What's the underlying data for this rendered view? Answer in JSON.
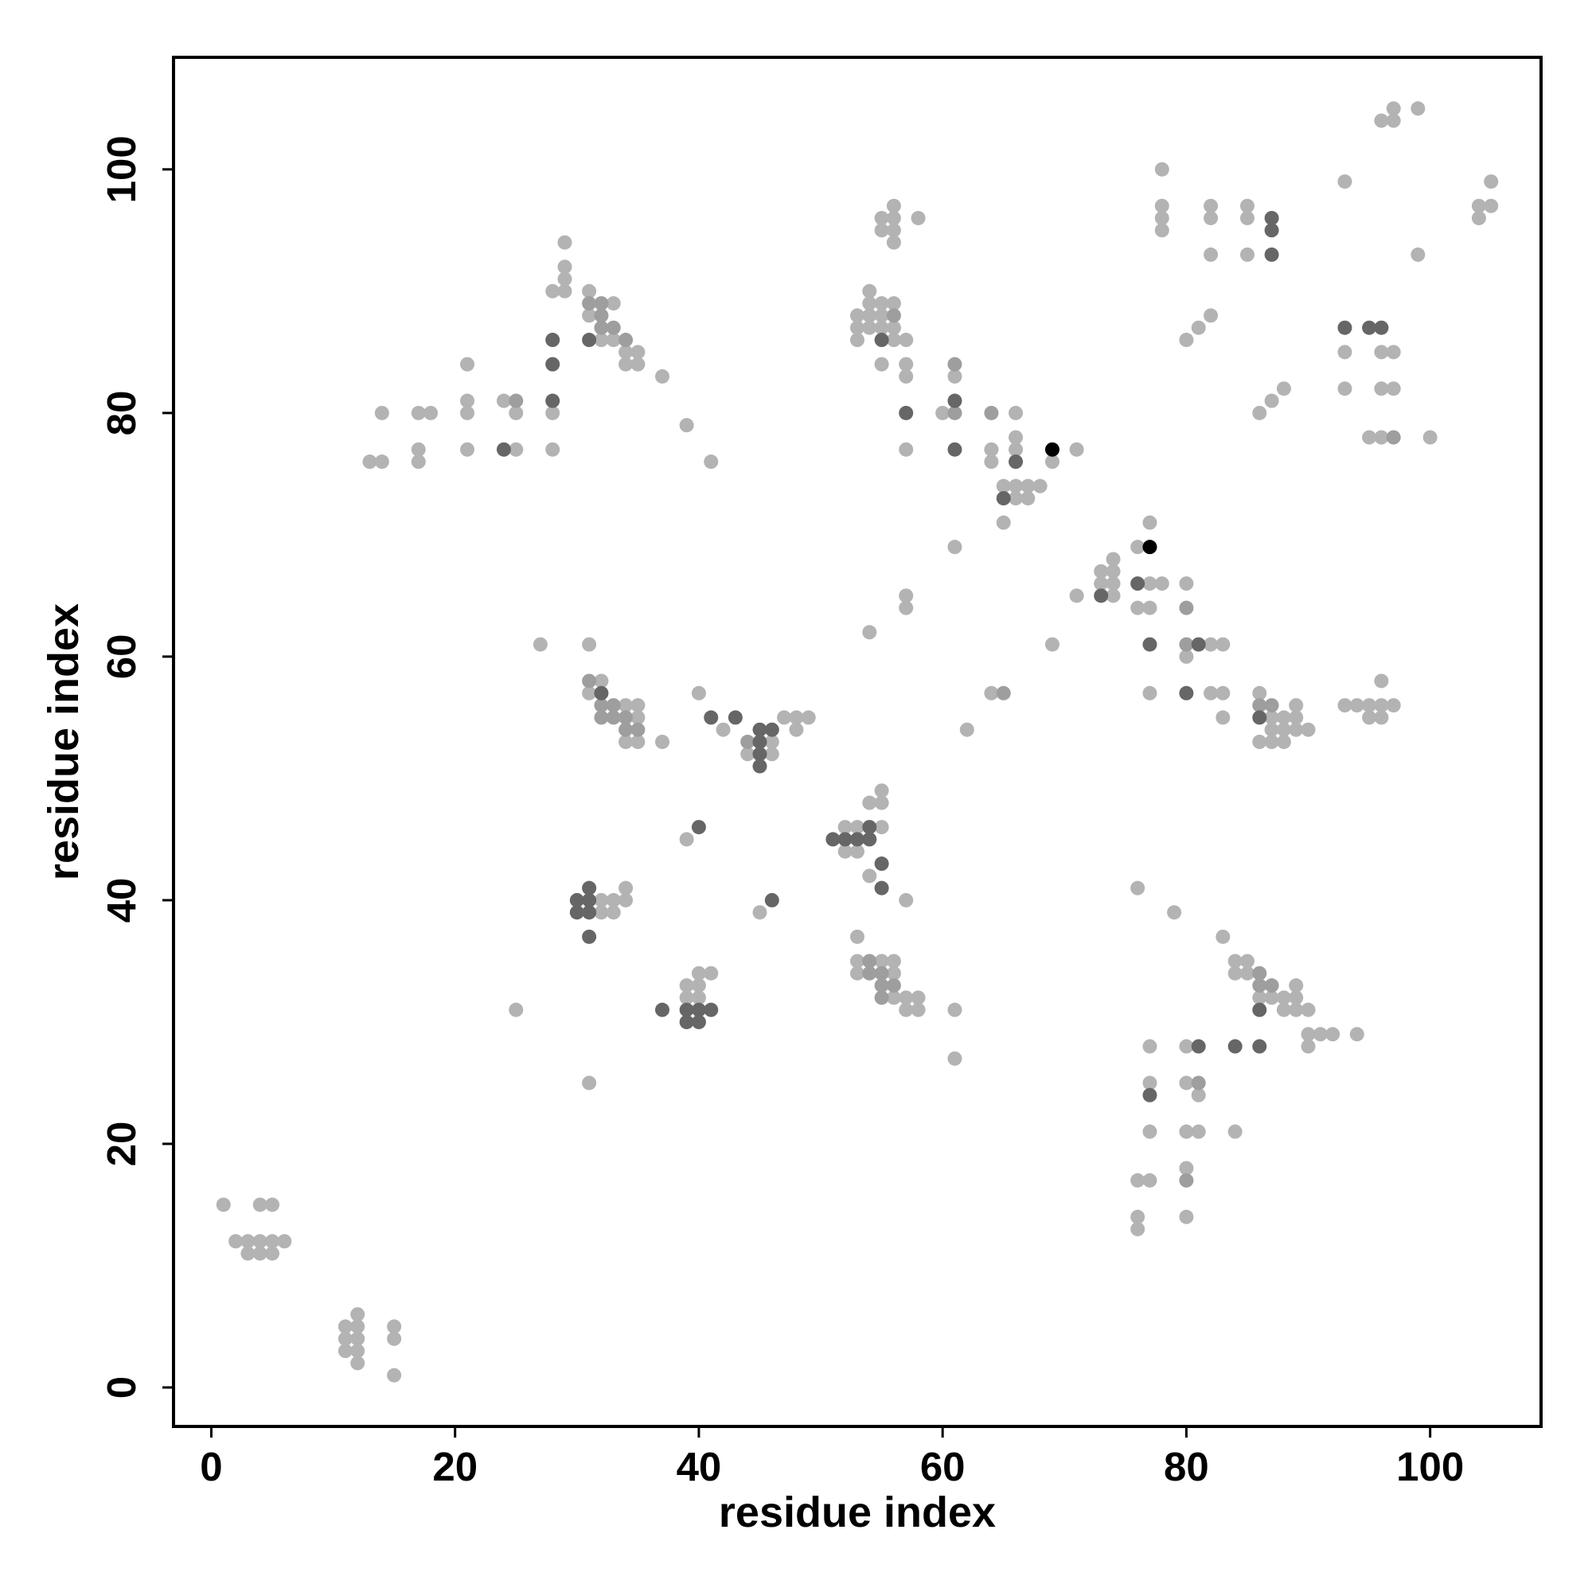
{
  "chart_data": {
    "type": "scatter",
    "xlabel": "residue index",
    "ylabel": "residue index",
    "xlim": [
      -3.1,
      109.1
    ],
    "ylim": [
      -3.2,
      109.2
    ],
    "xticks": [
      0,
      20,
      40,
      60,
      80,
      100
    ],
    "yticks": [
      0,
      20,
      40,
      60,
      80,
      100
    ],
    "series": [
      {
        "color": "#b3b3b3",
        "x": [
          1,
          2,
          3,
          4,
          5,
          6,
          3,
          4,
          5,
          4,
          5,
          11,
          11,
          11,
          12,
          12,
          12,
          12,
          12,
          15,
          15,
          15,
          13,
          14,
          14,
          17,
          18,
          17,
          17,
          21,
          21,
          21,
          21,
          24,
          25,
          25,
          28,
          29,
          29,
          29,
          29,
          28,
          28,
          31,
          31,
          33,
          32,
          33,
          34,
          35,
          34,
          35,
          37,
          39,
          41,
          27,
          31,
          32,
          31,
          34,
          35,
          35,
          34,
          35,
          37,
          40,
          42,
          47,
          48,
          49,
          48,
          44,
          46,
          46,
          39,
          45,
          31,
          25,
          32,
          33,
          34,
          34,
          32,
          33,
          39,
          40,
          39,
          40,
          40,
          41,
          53,
          52,
          52,
          53,
          55,
          54,
          55,
          55,
          54,
          57,
          53,
          53,
          55,
          56,
          53,
          56,
          56,
          57,
          58,
          57,
          58,
          61,
          61,
          54,
          55,
          56,
          55,
          56,
          56,
          56,
          58,
          53,
          54,
          55,
          53,
          54,
          55,
          56,
          54,
          55,
          56,
          54,
          53,
          56,
          57,
          55,
          57,
          57,
          57,
          57,
          57,
          60,
          61,
          61,
          66,
          66,
          64,
          66,
          64,
          65,
          66,
          67,
          68,
          66,
          67,
          65,
          69,
          71,
          64,
          62,
          69,
          71,
          73,
          74,
          74,
          73,
          74,
          74,
          76,
          77,
          77,
          78,
          76,
          77,
          80,
          80,
          82,
          83,
          77,
          82,
          83,
          83,
          86,
          87,
          88,
          89,
          89,
          87,
          88,
          89,
          90,
          86,
          87,
          88,
          93,
          94,
          95,
          96,
          97,
          96,
          95,
          96,
          76,
          79,
          83,
          84,
          85,
          84,
          85,
          86,
          87,
          88,
          89,
          89,
          88,
          89,
          90,
          90,
          91,
          92,
          94,
          90,
          77,
          80,
          77,
          80,
          81,
          77,
          80,
          81,
          84,
          80,
          76,
          77,
          76,
          76,
          80,
          78,
          78,
          78,
          78,
          82,
          82,
          82,
          85,
          85,
          85,
          80,
          81,
          82,
          86,
          87,
          88,
          93,
          96,
          97,
          97,
          99,
          99,
          104,
          105,
          104,
          105,
          93,
          96,
          97,
          93,
          96,
          97,
          95,
          96,
          100
        ],
        "y": [
          15,
          12,
          12,
          12,
          12,
          12,
          11,
          11,
          11,
          15,
          15,
          5,
          4,
          3,
          6,
          5,
          4,
          3,
          2,
          5,
          4,
          1,
          76,
          76,
          80,
          80,
          80,
          77,
          76,
          84,
          81,
          80,
          77,
          81,
          80,
          77,
          90,
          90,
          91,
          92,
          94,
          80,
          77,
          90,
          88,
          89,
          86,
          86,
          85,
          85,
          84,
          84,
          83,
          79,
          76,
          61,
          61,
          58,
          57,
          56,
          56,
          55,
          53,
          53,
          53,
          57,
          54,
          55,
          55,
          55,
          54,
          52,
          52,
          53,
          45,
          39,
          25,
          31,
          40,
          40,
          41,
          40,
          39,
          39,
          33,
          33,
          32,
          32,
          34,
          34,
          46,
          46,
          44,
          44,
          49,
          48,
          48,
          46,
          42,
          40,
          37,
          35,
          35,
          35,
          34,
          34,
          32,
          32,
          32,
          31,
          31,
          31,
          27,
          62,
          96,
          96,
          95,
          95,
          97,
          94,
          96,
          88,
          88,
          88,
          87,
          87,
          87,
          87,
          89,
          89,
          89,
          90,
          86,
          86,
          86,
          84,
          84,
          83,
          77,
          65,
          64,
          80,
          83,
          69,
          80,
          78,
          77,
          77,
          76,
          74,
          74,
          74,
          74,
          73,
          73,
          71,
          76,
          77,
          57,
          54,
          61,
          65,
          67,
          67,
          68,
          66,
          66,
          65,
          69,
          71,
          66,
          66,
          64,
          64,
          66,
          60,
          61,
          61,
          57,
          57,
          57,
          55,
          57,
          55,
          55,
          55,
          56,
          54,
          54,
          54,
          54,
          53,
          53,
          53,
          56,
          56,
          56,
          56,
          56,
          58,
          55,
          55,
          41,
          39,
          37,
          35,
          35,
          34,
          34,
          32,
          32,
          32,
          33,
          32,
          31,
          31,
          31,
          29,
          29,
          29,
          29,
          28,
          28,
          28,
          25,
          25,
          24,
          21,
          21,
          21,
          21,
          18,
          17,
          17,
          14,
          13,
          14,
          100,
          97,
          96,
          95,
          97,
          96,
          93,
          97,
          96,
          93,
          86,
          87,
          88,
          80,
          81,
          82,
          99,
          104,
          104,
          105,
          105,
          93,
          97,
          97,
          96,
          99,
          85,
          85,
          85,
          82,
          82,
          82,
          78,
          78,
          78
        ]
      },
      {
        "color": "#9e9e9e",
        "x": [
          25,
          31,
          32,
          32,
          32,
          33,
          34,
          31,
          32,
          33,
          32,
          33,
          34,
          34,
          35,
          44,
          54,
          54,
          55,
          55,
          56,
          55,
          56,
          61,
          61,
          64,
          65,
          80,
          80,
          86,
          87,
          86,
          86,
          87,
          81,
          80,
          97
        ],
        "y": [
          81,
          89,
          89,
          88,
          87,
          87,
          86,
          58,
          56,
          56,
          55,
          55,
          55,
          54,
          54,
          53,
          35,
          34,
          34,
          33,
          33,
          32,
          88,
          80,
          84,
          80,
          57,
          64,
          61,
          56,
          56,
          34,
          33,
          33,
          25,
          17,
          78
        ]
      },
      {
        "color": "#666666",
        "x": [
          24,
          28,
          28,
          28,
          31,
          32,
          41,
          43,
          45,
          46,
          45,
          45,
          45,
          40,
          46,
          30,
          31,
          31,
          30,
          31,
          31,
          37,
          39,
          40,
          41,
          39,
          40,
          51,
          52,
          53,
          54,
          54,
          55,
          55,
          55,
          57,
          61,
          61,
          66,
          65,
          73,
          76,
          77,
          81,
          80,
          86,
          86,
          81,
          84,
          86,
          77,
          87,
          87,
          87,
          93,
          95,
          96
        ],
        "y": [
          77,
          86,
          84,
          81,
          86,
          57,
          55,
          55,
          54,
          54,
          53,
          52,
          51,
          46,
          40,
          40,
          40,
          41,
          39,
          39,
          37,
          31,
          31,
          31,
          31,
          30,
          30,
          45,
          45,
          45,
          45,
          46,
          43,
          41,
          86,
          80,
          81,
          77,
          76,
          73,
          65,
          66,
          61,
          61,
          57,
          55,
          31,
          28,
          28,
          28,
          24,
          96,
          95,
          93,
          87,
          87,
          87
        ]
      },
      {
        "color": "#000000",
        "x": [
          69,
          77
        ],
        "y": [
          77,
          69
        ]
      }
    ]
  }
}
